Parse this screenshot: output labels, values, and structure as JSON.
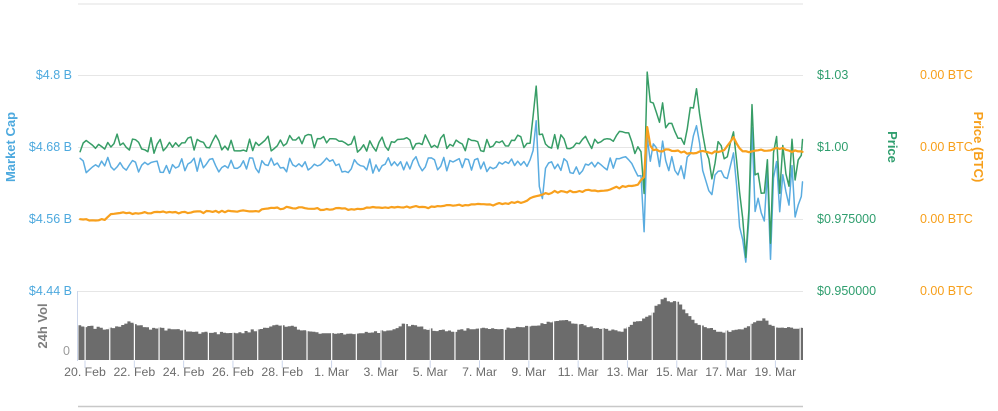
{
  "page": {
    "background": "#ffffff"
  },
  "chart_data": {
    "type": "mixed",
    "title": "",
    "x": {
      "unit": "date",
      "tick_labels": [
        "20. Feb",
        "22. Feb",
        "24. Feb",
        "26. Feb",
        "28. Feb",
        "1. Mar",
        "3. Mar",
        "5. Mar",
        "7. Mar",
        "9. Mar",
        "11. Mar",
        "13. Mar",
        "15. Mar",
        "17. Mar",
        "19. Mar"
      ],
      "tick_interval_days": 2,
      "domain_days": [
        -0.2,
        29.1
      ]
    },
    "y_axes": {
      "market_cap": {
        "title": "Market Cap",
        "color": "#4DA9DE",
        "tick_labels": [
          "$4.8 B",
          "$4.68 B",
          "$4.56 B",
          "$4.44 B"
        ],
        "tick_values_billions": [
          4.8,
          4.68,
          4.56,
          4.44
        ],
        "range_top_bottom": [
          4.9183,
          4.44
        ]
      },
      "price": {
        "title": "Price",
        "color": "#2F9E6E",
        "tick_labels": [
          "$1.03",
          "$1.00",
          "$0.975000",
          "$0.950000"
        ],
        "tick_values_usd": [
          1.03,
          1.0,
          0.975,
          0.95
        ],
        "range_top_bottom": [
          1.0497,
          0.95
        ]
      },
      "price_btc": {
        "title": "Price (BTC)",
        "color": "#F79F1A",
        "tick_labels": [
          "0.00 BTC",
          "0.00 BTC",
          "0.00 BTC",
          "0.00 BTC"
        ],
        "note": "axis labels all round to 0.00 BTC; series stored as normalized pane fraction",
        "range_top_bottom": [
          0,
          1
        ]
      },
      "volume": {
        "title": "24h Vol",
        "color": "#6C6C6C",
        "zero_label": "0"
      }
    },
    "series": [
      {
        "name": "Market Cap",
        "axis": "market_cap",
        "unit": "USD billions",
        "color": "#5AACE0",
        "width": 1.5,
        "jitter": 0.013,
        "keypoints": [
          [
            -0.2,
            4.649
          ],
          [
            1,
            4.651
          ],
          [
            3,
            4.647
          ],
          [
            5,
            4.652
          ],
          [
            7,
            4.649
          ],
          [
            9,
            4.653
          ],
          [
            11,
            4.648
          ],
          [
            13,
            4.652
          ],
          [
            15,
            4.65
          ],
          [
            17,
            4.648
          ],
          [
            18.1,
            4.655
          ],
          [
            18.3,
            4.72
          ],
          [
            18.5,
            4.56
          ],
          [
            18.7,
            4.645
          ],
          [
            19,
            4.65
          ],
          [
            20,
            4.646
          ],
          [
            21,
            4.649
          ],
          [
            22,
            4.655
          ],
          [
            22.55,
            4.63
          ],
          [
            22.7,
            4.51
          ],
          [
            22.83,
            4.76
          ],
          [
            22.95,
            4.62
          ],
          [
            23.1,
            4.7
          ],
          [
            23.25,
            4.64
          ],
          [
            23.4,
            4.685
          ],
          [
            23.6,
            4.645
          ],
          [
            23.8,
            4.66
          ],
          [
            24,
            4.64
          ],
          [
            24.3,
            4.635
          ],
          [
            24.8,
            4.71
          ],
          [
            25.1,
            4.64
          ],
          [
            25.4,
            4.59
          ],
          [
            25.7,
            4.655
          ],
          [
            26,
            4.62
          ],
          [
            26.3,
            4.66
          ],
          [
            26.55,
            4.55
          ],
          [
            26.85,
            4.47
          ],
          [
            27.05,
            4.7
          ],
          [
            27.2,
            4.54
          ],
          [
            27.35,
            4.62
          ],
          [
            27.5,
            4.5
          ],
          [
            27.65,
            4.655
          ],
          [
            27.8,
            4.49
          ],
          [
            28,
            4.7
          ],
          [
            28.2,
            4.545
          ],
          [
            28.35,
            4.68
          ],
          [
            28.5,
            4.54
          ],
          [
            28.65,
            4.665
          ],
          [
            28.8,
            4.575
          ],
          [
            29.1,
            4.61
          ]
        ]
      },
      {
        "name": "Price",
        "axis": "price",
        "unit": "USD",
        "color": "#379D66",
        "width": 1.5,
        "jitter": 0.0028,
        "keypoints": [
          [
            -0.2,
            1.001
          ],
          [
            1,
            1.002
          ],
          [
            3,
            1.0005
          ],
          [
            5,
            1.002
          ],
          [
            7,
            1.001
          ],
          [
            9,
            1.0025
          ],
          [
            11,
            1.001
          ],
          [
            13,
            1.002
          ],
          [
            15,
            1.0015
          ],
          [
            17,
            1.001
          ],
          [
            18.1,
            1.003
          ],
          [
            18.3,
            1.0215
          ],
          [
            18.45,
            1.004
          ],
          [
            19,
            1.002
          ],
          [
            20,
            1.0015
          ],
          [
            21,
            1.002
          ],
          [
            22,
            1.003
          ],
          [
            22.55,
            0.9985
          ],
          [
            22.7,
            0.978
          ],
          [
            22.83,
            1.0435
          ],
          [
            22.95,
            1.006
          ],
          [
            23.1,
            1.022
          ],
          [
            23.25,
            1.004
          ],
          [
            23.4,
            1.018
          ],
          [
            23.55,
            1.006
          ],
          [
            23.8,
            1.01
          ],
          [
            24,
            1.006
          ],
          [
            24.3,
            1.0035
          ],
          [
            24.8,
            1.0198
          ],
          [
            25.1,
            1.002
          ],
          [
            25.4,
            0.99
          ],
          [
            25.7,
            1.004
          ],
          [
            26,
            0.9935
          ],
          [
            26.3,
            1.006
          ],
          [
            26.55,
            0.9825
          ],
          [
            26.85,
            0.9605
          ],
          [
            27.05,
            1.0146
          ],
          [
            27.2,
            0.9835
          ],
          [
            27.35,
            0.9975
          ],
          [
            27.5,
            0.9715
          ],
          [
            27.65,
            1.0035
          ],
          [
            27.8,
            0.9665
          ],
          [
            28,
            1.0125
          ],
          [
            28.2,
            0.9775
          ],
          [
            28.35,
            1.009
          ],
          [
            28.5,
            0.9745
          ],
          [
            28.65,
            1.0065
          ],
          [
            28.8,
            0.9875
          ],
          [
            29.1,
            1.002
          ]
        ]
      },
      {
        "name": "Price (BTC)",
        "axis": "price_btc",
        "unit": "normalized pane fraction (labels show 0.00 BTC)",
        "color": "#F8A01D",
        "width": 2.2,
        "jitter": 0.004,
        "keypoints": [
          [
            -0.2,
            0.752
          ],
          [
            0.8,
            0.75
          ],
          [
            1.1,
            0.729
          ],
          [
            3,
            0.727
          ],
          [
            5,
            0.725
          ],
          [
            7,
            0.722
          ],
          [
            7.6,
            0.712
          ],
          [
            8.5,
            0.71
          ],
          [
            9.5,
            0.715
          ],
          [
            11,
            0.714
          ],
          [
            12,
            0.71
          ],
          [
            13,
            0.706
          ],
          [
            14,
            0.708
          ],
          [
            15,
            0.703
          ],
          [
            16,
            0.7
          ],
          [
            17,
            0.697
          ],
          [
            17.8,
            0.69
          ],
          [
            18.3,
            0.668
          ],
          [
            19,
            0.655
          ],
          [
            20,
            0.652
          ],
          [
            21,
            0.648
          ],
          [
            22,
            0.634
          ],
          [
            22.4,
            0.628
          ],
          [
            22.7,
            0.6
          ],
          [
            22.83,
            0.375
          ],
          [
            22.95,
            0.52
          ],
          [
            23.1,
            0.5
          ],
          [
            23.3,
            0.513
          ],
          [
            23.6,
            0.508
          ],
          [
            24,
            0.512
          ],
          [
            24.5,
            0.52
          ],
          [
            25,
            0.513
          ],
          [
            25.5,
            0.518
          ],
          [
            26,
            0.505
          ],
          [
            26.3,
            0.46
          ],
          [
            26.6,
            0.515
          ],
          [
            27,
            0.513
          ],
          [
            27.5,
            0.51
          ],
          [
            28,
            0.505
          ],
          [
            28.3,
            0.5
          ],
          [
            28.6,
            0.513
          ],
          [
            29.1,
            0.512
          ]
        ]
      }
    ],
    "volume": {
      "name": "24h Vol",
      "color": "#6C6C6C",
      "jitter": 0.02,
      "unit": "normalized pane fraction (0 baseline labeled)",
      "keypoints": [
        [
          -0.28,
          0.5
        ],
        [
          0.2,
          0.48
        ],
        [
          0.8,
          0.44
        ],
        [
          1.8,
          0.55
        ],
        [
          2.5,
          0.46
        ],
        [
          3.5,
          0.44
        ],
        [
          4.5,
          0.4
        ],
        [
          5.5,
          0.39
        ],
        [
          6.5,
          0.41
        ],
        [
          7.5,
          0.49
        ],
        [
          8.3,
          0.5
        ],
        [
          9,
          0.4
        ],
        [
          9.8,
          0.37
        ],
        [
          10.5,
          0.38
        ],
        [
          11.5,
          0.4
        ],
        [
          12.3,
          0.42
        ],
        [
          12.8,
          0.52
        ],
        [
          13.3,
          0.5
        ],
        [
          14,
          0.44
        ],
        [
          15,
          0.42
        ],
        [
          15.8,
          0.46
        ],
        [
          16.5,
          0.44
        ],
        [
          17.3,
          0.47
        ],
        [
          18,
          0.49
        ],
        [
          18.8,
          0.55
        ],
        [
          19.5,
          0.57
        ],
        [
          20.2,
          0.5
        ],
        [
          21,
          0.44
        ],
        [
          21.7,
          0.42
        ],
        [
          22.3,
          0.56
        ],
        [
          22.8,
          0.62
        ],
        [
          23.2,
          0.82
        ],
        [
          23.45,
          0.9
        ],
        [
          23.7,
          0.84
        ],
        [
          24,
          0.86
        ],
        [
          24.3,
          0.7
        ],
        [
          24.7,
          0.55
        ],
        [
          25.2,
          0.46
        ],
        [
          25.7,
          0.42
        ],
        [
          26.2,
          0.41
        ],
        [
          26.8,
          0.48
        ],
        [
          27.3,
          0.58
        ],
        [
          27.55,
          0.62
        ],
        [
          27.7,
          0.5
        ],
        [
          28,
          0.48
        ],
        [
          28.4,
          0.46
        ],
        [
          28.8,
          0.45
        ],
        [
          29.12,
          0.47
        ]
      ]
    },
    "style": {
      "gridline_color": "#E6E6E6",
      "plot_top_border_color": "#E2E2E2",
      "plot_bottom_border_color": "#C8C8C8",
      "axis_tick_color": "#CCD6EB",
      "volume_day_separator_color": "#FFFFFF"
    }
  }
}
